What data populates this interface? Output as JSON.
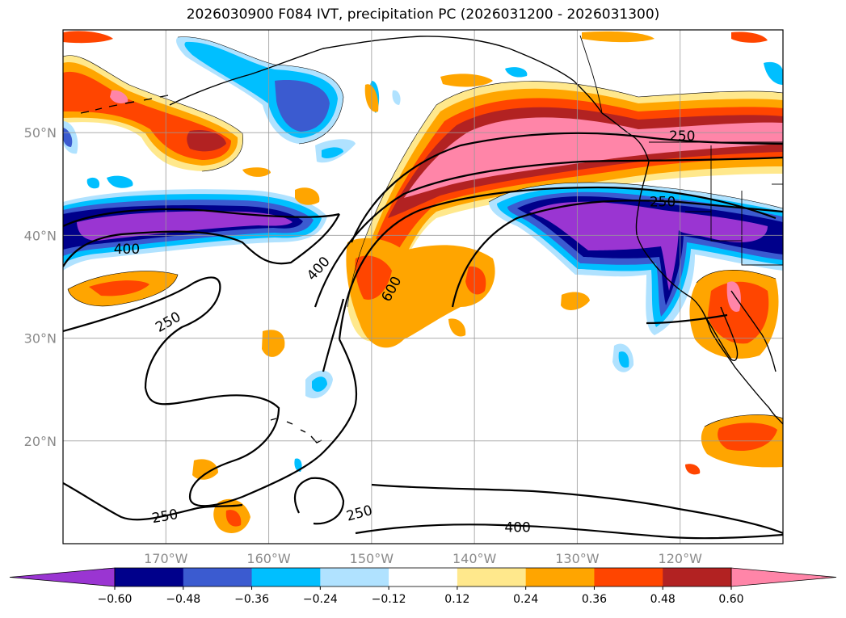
{
  "chart_data": {
    "type": "heatmap",
    "title": "2026030900 F084 IVT, precipitation PC (2026031200 - 2026031300)",
    "xlim": [
      -180,
      -110
    ],
    "ylim": [
      10,
      60
    ],
    "x_ticks": [
      -170,
      -160,
      -150,
      -140,
      -130,
      -120
    ],
    "x_tick_labels": [
      "170°W",
      "160°W",
      "150°W",
      "140°W",
      "130°W",
      "120°W"
    ],
    "y_ticks": [
      20,
      30,
      40,
      50
    ],
    "y_tick_labels": [
      "20°N",
      "30°N",
      "40°N",
      "50°N"
    ],
    "grid": true,
    "colorbar": {
      "orientation": "horizontal",
      "extend": "both",
      "levels": [
        -0.6,
        -0.48,
        -0.36,
        -0.24,
        -0.12,
        0.12,
        0.24,
        0.36,
        0.48,
        0.6
      ],
      "tick_labels": [
        "−0.60",
        "−0.48",
        "−0.36",
        "−0.24",
        "−0.12",
        "0.12",
        "0.24",
        "0.36",
        "0.48",
        "0.60"
      ],
      "colors": [
        "#9a35d2",
        "#00008b",
        "#3b5bd0",
        "#00bfff",
        "#b0e2ff",
        "#ffffff",
        "#ffe88c",
        "#ffa500",
        "#ff4500",
        "#b22222",
        "#ff85a8"
      ]
    },
    "contour_levels": [
      250,
      400,
      600
    ],
    "contour_labels": [
      {
        "text": "250",
        "lon": -119.8,
        "lat": 49.7,
        "angle": 0
      },
      {
        "text": "250",
        "lon": -121.7,
        "lat": 43.3,
        "angle": 0
      },
      {
        "text": "400",
        "lon": -173.8,
        "lat": 38.7,
        "angle": 0
      },
      {
        "text": "400",
        "lon": -155.2,
        "lat": 36.8,
        "angle": -48
      },
      {
        "text": "600",
        "lon": -148.1,
        "lat": 34.8,
        "angle": -62
      },
      {
        "text": "250",
        "lon": -169.8,
        "lat": 31.6,
        "angle": -30
      },
      {
        "text": "250",
        "lon": -170.1,
        "lat": 12.7,
        "angle": -10
      },
      {
        "text": "250",
        "lon": -151.2,
        "lat": 13.0,
        "angle": -15
      },
      {
        "text": "400",
        "lon": -135.8,
        "lat": 11.6,
        "angle": 0
      }
    ],
    "precip_regions": [
      {
        "name": "northeast-pacific-atmospheric-river",
        "sign": "positive",
        "peak": 0.6,
        "lon": [
          -148,
          -110
        ],
        "lat": [
          38,
          55
        ]
      },
      {
        "name": "west-of-california-dry-anomaly",
        "sign": "negative",
        "peak": -0.6,
        "lon": [
          -135,
          -110
        ],
        "lat": [
          32,
          45
        ]
      },
      {
        "name": "central-pacific-negative-band",
        "sign": "negative",
        "peak": -0.6,
        "lon": [
          -180,
          -155
        ],
        "lat": [
          37,
          44
        ]
      },
      {
        "name": "aleutian-positive-patch",
        "sign": "positive",
        "peak": 0.6,
        "lon": [
          -180,
          -163
        ],
        "lat": [
          47,
          58
        ]
      },
      {
        "name": "gulf-of-alaska-negative-patch",
        "sign": "negative",
        "peak": -0.48,
        "lon": [
          -160,
          -150
        ],
        "lat": [
          50,
          57
        ]
      },
      {
        "name": "subtropical-streamer",
        "sign": "positive",
        "peak": 0.48,
        "lon": [
          -152,
          -132
        ],
        "lat": [
          28,
          40
        ]
      },
      {
        "name": "baja-positive-patch",
        "sign": "positive",
        "peak": 0.6,
        "lon": [
          -119,
          -110
        ],
        "lat": [
          27,
          35
        ]
      },
      {
        "name": "mexico-positive-patch",
        "sign": "positive",
        "peak": 0.48,
        "lon": [
          -118,
          -110
        ],
        "lat": [
          18,
          23
        ]
      }
    ]
  }
}
